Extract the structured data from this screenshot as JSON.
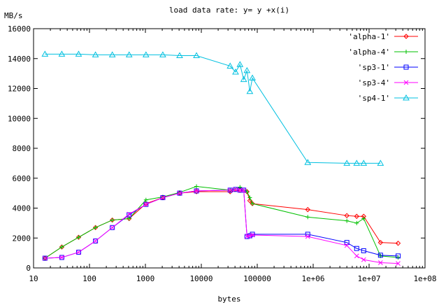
{
  "chart_data": {
    "type": "line",
    "title": "load data rate: y= y +x(i)",
    "xlabel": "bytes",
    "ylabel": "MB/s",
    "xscale": "log",
    "xlim": [
      10,
      100000000
    ],
    "ylim": [
      0,
      16000
    ],
    "legend_position": "top-right",
    "grid": false,
    "x_ticks": [
      {
        "value": 10,
        "label": "10"
      },
      {
        "value": 100,
        "label": "100"
      },
      {
        "value": 1000,
        "label": "1000"
      },
      {
        "value": 10000,
        "label": "10000"
      },
      {
        "value": 100000,
        "label": "100000"
      },
      {
        "value": 1000000,
        "label": "1e+06"
      },
      {
        "value": 10000000,
        "label": "1e+07"
      },
      {
        "value": 100000000,
        "label": "1e+08"
      }
    ],
    "y_ticks": [
      {
        "value": 0,
        "label": "0"
      },
      {
        "value": 2000,
        "label": "2000"
      },
      {
        "value": 4000,
        "label": "4000"
      },
      {
        "value": 6000,
        "label": "6000"
      },
      {
        "value": 8000,
        "label": "8000"
      },
      {
        "value": 10000,
        "label": "10000"
      },
      {
        "value": 12000,
        "label": "12000"
      },
      {
        "value": 14000,
        "label": "14000"
      },
      {
        "value": 16000,
        "label": "16000"
      }
    ],
    "series": [
      {
        "name": "'alpha-1'",
        "color": "#ff0000",
        "marker": "diamond",
        "points": [
          [
            16,
            650
          ],
          [
            32,
            1400
          ],
          [
            64,
            2050
          ],
          [
            128,
            2700
          ],
          [
            256,
            3200
          ],
          [
            512,
            3300
          ],
          [
            1024,
            4300
          ],
          [
            2048,
            4700
          ],
          [
            4096,
            5000
          ],
          [
            8192,
            5100
          ],
          [
            32768,
            5100
          ],
          [
            49152,
            5200
          ],
          [
            65536,
            5100
          ],
          [
            73728,
            4500
          ],
          [
            81920,
            4300
          ],
          [
            800000,
            3900
          ],
          [
            4000000,
            3500
          ],
          [
            6000000,
            3450
          ],
          [
            8000000,
            3450
          ],
          [
            16000000,
            1700
          ],
          [
            33000000,
            1650
          ]
        ]
      },
      {
        "name": "'alpha-4'",
        "color": "#00c000",
        "marker": "plus",
        "points": [
          [
            16,
            650
          ],
          [
            32,
            1400
          ],
          [
            64,
            2050
          ],
          [
            128,
            2700
          ],
          [
            256,
            3200
          ],
          [
            512,
            3300
          ],
          [
            1024,
            4550
          ],
          [
            2048,
            4750
          ],
          [
            4096,
            5050
          ],
          [
            8192,
            5450
          ],
          [
            32768,
            5200
          ],
          [
            49152,
            5400
          ],
          [
            65536,
            5100
          ],
          [
            73728,
            4700
          ],
          [
            81920,
            4300
          ],
          [
            800000,
            3400
          ],
          [
            4000000,
            3150
          ],
          [
            6000000,
            3000
          ],
          [
            8000000,
            3300
          ],
          [
            16000000,
            800
          ],
          [
            33000000,
            700
          ]
        ]
      },
      {
        "name": "'sp3-1'",
        "color": "#0000ff",
        "marker": "square",
        "points": [
          [
            16,
            650
          ],
          [
            32,
            700
          ],
          [
            64,
            1050
          ],
          [
            128,
            1800
          ],
          [
            256,
            2700
          ],
          [
            512,
            3550
          ],
          [
            1024,
            4250
          ],
          [
            2048,
            4700
          ],
          [
            4096,
            5000
          ],
          [
            8192,
            5150
          ],
          [
            32768,
            5200
          ],
          [
            40960,
            5250
          ],
          [
            49152,
            5200
          ],
          [
            57344,
            5200
          ],
          [
            65536,
            2100
          ],
          [
            73728,
            2150
          ],
          [
            81920,
            2250
          ],
          [
            800000,
            2250
          ],
          [
            4000000,
            1700
          ],
          [
            6000000,
            1300
          ],
          [
            8000000,
            1150
          ],
          [
            16000000,
            850
          ],
          [
            33000000,
            800
          ]
        ]
      },
      {
        "name": "'sp3-4'",
        "color": "#ff00ff",
        "marker": "cross",
        "points": [
          [
            16,
            650
          ],
          [
            32,
            700
          ],
          [
            64,
            1050
          ],
          [
            128,
            1800
          ],
          [
            256,
            2700
          ],
          [
            512,
            3600
          ],
          [
            1024,
            4250
          ],
          [
            2048,
            4700
          ],
          [
            4096,
            5000
          ],
          [
            8192,
            5150
          ],
          [
            32768,
            5200
          ],
          [
            40960,
            5250
          ],
          [
            49152,
            5200
          ],
          [
            57344,
            5200
          ],
          [
            65536,
            2100
          ],
          [
            73728,
            2150
          ],
          [
            81920,
            2200
          ],
          [
            800000,
            2100
          ],
          [
            4000000,
            1500
          ],
          [
            6000000,
            800
          ],
          [
            8000000,
            550
          ],
          [
            16000000,
            350
          ],
          [
            33000000,
            300
          ]
        ]
      },
      {
        "name": "'sp4-1'",
        "color": "#00c0e0",
        "marker": "triangle",
        "points": [
          [
            16,
            14300
          ],
          [
            32,
            14300
          ],
          [
            64,
            14300
          ],
          [
            128,
            14250
          ],
          [
            256,
            14250
          ],
          [
            512,
            14250
          ],
          [
            1024,
            14250
          ],
          [
            2048,
            14250
          ],
          [
            4096,
            14200
          ],
          [
            8192,
            14200
          ],
          [
            32768,
            13500
          ],
          [
            40960,
            13100
          ],
          [
            49152,
            13600
          ],
          [
            57344,
            12600
          ],
          [
            65536,
            13200
          ],
          [
            73728,
            11800
          ],
          [
            81920,
            12700
          ],
          [
            800000,
            7050
          ],
          [
            4000000,
            7000
          ],
          [
            6000000,
            7000
          ],
          [
            8000000,
            7000
          ],
          [
            16000000,
            7000
          ]
        ]
      }
    ]
  }
}
